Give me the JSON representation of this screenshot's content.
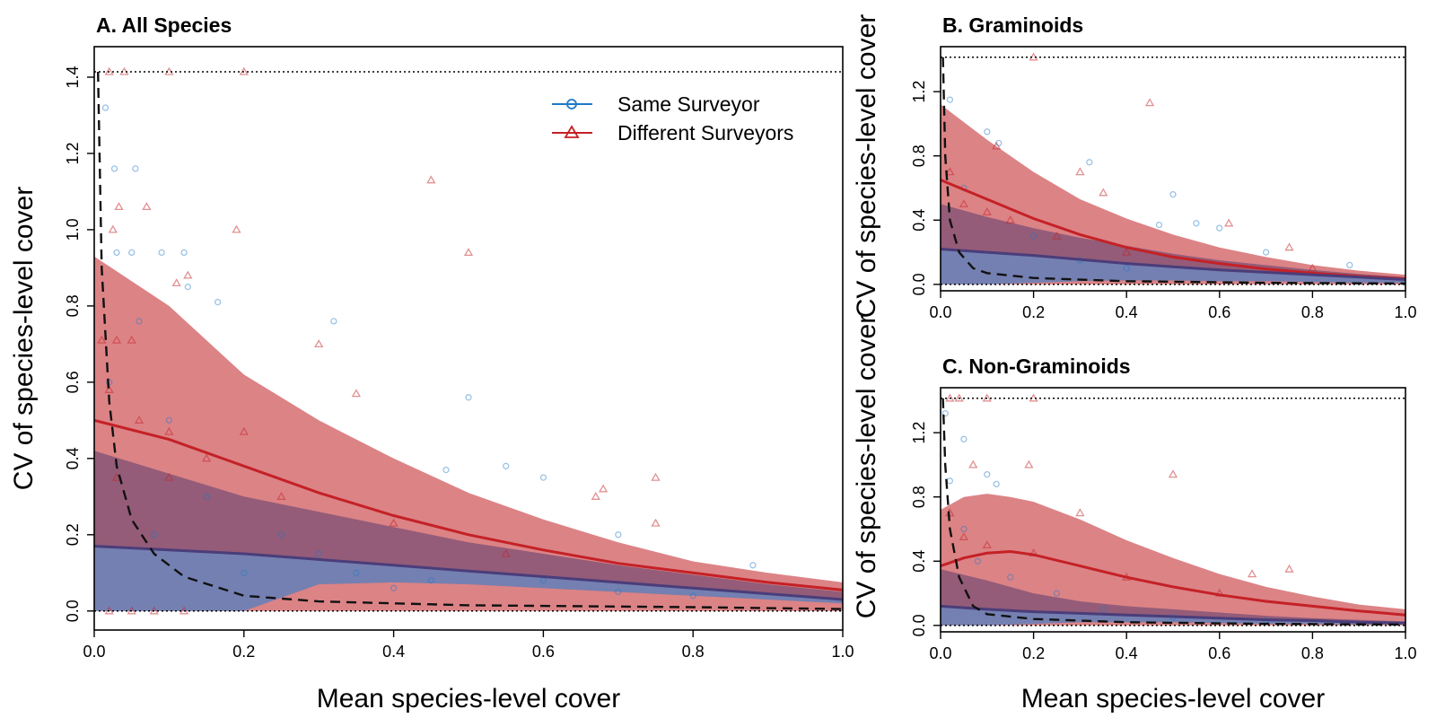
{
  "chart_data": [
    {
      "type": "scatter",
      "panel": "A",
      "title": "A. All Species",
      "xlabel": "Mean species-level cover",
      "ylabel": "CV of species-level cover",
      "xlim": [
        0,
        1
      ],
      "ylim": [
        -0.05,
        1.48
      ],
      "xticks": [
        "0.0",
        "0.2",
        "0.4",
        "0.6",
        "0.8",
        "1.0"
      ],
      "yticks": [
        "0.0",
        "0.2",
        "0.4",
        "0.6",
        "0.8",
        "1.0",
        "1.2",
        "1.4"
      ],
      "ref_max_cv": 1.414,
      "legend": {
        "position": "top-right",
        "entries": [
          {
            "label": "Same Surveyor",
            "color": "#1f78c8",
            "marker": "circle"
          },
          {
            "label": "Different Surveyors",
            "color": "#c42126",
            "marker": "triangle"
          }
        ]
      },
      "colors": {
        "same": "#1f78c8",
        "diff": "#c42126",
        "same_band": "#5a9fe0",
        "diff_band": "#d05a5e",
        "overlap": "#5a3d6e"
      },
      "series": [
        {
          "name": "Same Surveyor",
          "x": [
            0,
            0.1,
            0.2,
            0.3,
            0.4,
            0.5,
            0.6,
            0.7,
            0.8,
            0.9,
            1.0
          ],
          "mean": [
            0.17,
            0.16,
            0.15,
            0.135,
            0.12,
            0.105,
            0.09,
            0.075,
            0.06,
            0.045,
            0.03
          ],
          "lower": [
            0,
            0,
            0,
            0.07,
            0.075,
            0.07,
            0.06,
            0.05,
            0.04,
            0.03,
            0.02
          ],
          "upper": [
            0.42,
            0.36,
            0.3,
            0.26,
            0.22,
            0.18,
            0.15,
            0.12,
            0.095,
            0.07,
            0.05
          ]
        },
        {
          "name": "Different Surveyors",
          "x": [
            0,
            0.1,
            0.2,
            0.3,
            0.4,
            0.5,
            0.6,
            0.7,
            0.8,
            0.9,
            1.0
          ],
          "mean": [
            0.5,
            0.45,
            0.38,
            0.31,
            0.25,
            0.2,
            0.16,
            0.125,
            0.1,
            0.075,
            0.055
          ],
          "lower": [
            0,
            0,
            0,
            0,
            0,
            0,
            0,
            0,
            0,
            0,
            0
          ],
          "upper": [
            0.93,
            0.8,
            0.62,
            0.5,
            0.4,
            0.31,
            0.24,
            0.18,
            0.13,
            0.1,
            0.075
          ]
        },
        {
          "name": "",
          "x": [
            0.005,
            0.01,
            0.02,
            0.03,
            0.05,
            0.08,
            0.12,
            0.2,
            0.3,
            0.5,
            0.8,
            1.0
          ],
          "y": [
            1.414,
            0.9,
            0.55,
            0.38,
            0.24,
            0.15,
            0.09,
            0.04,
            0.025,
            0.015,
            0.01,
            0.005
          ],
          "style": "dashed"
        }
      ],
      "points_same": [
        [
          0.015,
          1.32
        ],
        [
          0.027,
          1.16
        ],
        [
          0.055,
          1.16
        ],
        [
          0.03,
          0.94
        ],
        [
          0.05,
          0.94
        ],
        [
          0.09,
          0.94
        ],
        [
          0.12,
          0.94
        ],
        [
          0.125,
          0.85
        ],
        [
          0.165,
          0.81
        ],
        [
          0.32,
          0.76
        ],
        [
          0.5,
          0.56
        ],
        [
          0.55,
          0.38
        ],
        [
          0.6,
          0.35
        ],
        [
          0.7,
          0.2
        ],
        [
          0.47,
          0.37
        ],
        [
          0.88,
          0.12
        ],
        [
          0.02,
          0.6
        ],
        [
          0.06,
          0.76
        ],
        [
          0.1,
          0.5
        ],
        [
          0.15,
          0.3
        ],
        [
          0.25,
          0.2
        ],
        [
          0.35,
          0.1
        ],
        [
          0.45,
          0.08
        ],
        [
          0.7,
          0.05
        ],
        [
          0.8,
          0.04
        ],
        [
          0.08,
          0.2
        ],
        [
          0.2,
          0.1
        ],
        [
          0.3,
          0.15
        ],
        [
          0.4,
          0.06
        ],
        [
          0.6,
          0.08
        ]
      ],
      "points_diff": [
        [
          0.02,
          1.414
        ],
        [
          0.04,
          1.414
        ],
        [
          0.1,
          1.414
        ],
        [
          0.2,
          1.414
        ],
        [
          0.033,
          1.06
        ],
        [
          0.025,
          1.0
        ],
        [
          0.07,
          1.06
        ],
        [
          0.19,
          1.0
        ],
        [
          0.45,
          1.13
        ],
        [
          0.5,
          0.94
        ],
        [
          0.11,
          0.86
        ],
        [
          0.125,
          0.88
        ],
        [
          0.3,
          0.7
        ],
        [
          0.35,
          0.57
        ],
        [
          0.67,
          0.3
        ],
        [
          0.75,
          0.23
        ],
        [
          0.75,
          0.35
        ],
        [
          0.68,
          0.32
        ],
        [
          0.01,
          0.71
        ],
        [
          0.03,
          0.71
        ],
        [
          0.05,
          0.71
        ],
        [
          0.02,
          0.58
        ],
        [
          0.06,
          0.5
        ],
        [
          0.1,
          0.47
        ],
        [
          0.15,
          0.4
        ],
        [
          0.2,
          0.47
        ],
        [
          0.25,
          0.3
        ],
        [
          0.4,
          0.23
        ],
        [
          0.55,
          0.15
        ],
        [
          0.1,
          0.35
        ],
        [
          0.03,
          0.35
        ],
        [
          0.02,
          0
        ],
        [
          0.05,
          0
        ],
        [
          0.08,
          0
        ],
        [
          0.12,
          0
        ]
      ]
    },
    {
      "type": "scatter",
      "panel": "B",
      "title": "B. Graminoids",
      "xlabel": "",
      "ylabel": "CV of species-level cover",
      "xlim": [
        0,
        1
      ],
      "ylim": [
        -0.04,
        1.48
      ],
      "xticks": [
        "0.0",
        "0.2",
        "0.4",
        "0.6",
        "0.8",
        "1.0"
      ],
      "yticks": [
        "0.0",
        "0.4",
        "0.8",
        "1.2"
      ],
      "ref_max_cv": 1.414,
      "series": [
        {
          "name": "Same Surveyor",
          "x": [
            0,
            0.1,
            0.2,
            0.3,
            0.4,
            0.5,
            0.6,
            0.7,
            0.8,
            0.9,
            1.0
          ],
          "mean": [
            0.22,
            0.2,
            0.18,
            0.155,
            0.13,
            0.11,
            0.09,
            0.075,
            0.06,
            0.045,
            0.03
          ],
          "lower": [
            0,
            0,
            0.01,
            0.02,
            0.025,
            0.025,
            0.02,
            0.02,
            0.015,
            0.01,
            0.01
          ],
          "upper": [
            0.5,
            0.42,
            0.35,
            0.29,
            0.24,
            0.19,
            0.15,
            0.12,
            0.09,
            0.065,
            0.045
          ]
        },
        {
          "name": "Different Surveyors",
          "x": [
            0,
            0.1,
            0.2,
            0.3,
            0.4,
            0.5,
            0.6,
            0.7,
            0.8,
            0.9,
            1.0
          ],
          "mean": [
            0.65,
            0.53,
            0.41,
            0.31,
            0.23,
            0.17,
            0.13,
            0.095,
            0.07,
            0.05,
            0.035
          ],
          "lower": [
            0,
            0,
            0,
            0,
            0,
            0,
            0,
            0,
            0,
            0,
            0
          ],
          "upper": [
            1.12,
            0.9,
            0.7,
            0.53,
            0.41,
            0.31,
            0.23,
            0.17,
            0.12,
            0.085,
            0.06
          ]
        },
        {
          "name": "",
          "x": [
            0.005,
            0.01,
            0.02,
            0.04,
            0.07,
            0.1,
            0.2,
            0.4,
            0.7,
            1.0
          ],
          "y": [
            1.414,
            0.8,
            0.4,
            0.2,
            0.1,
            0.07,
            0.04,
            0.02,
            0.01,
            0.005
          ],
          "style": "dashed"
        }
      ],
      "points_same": [
        [
          0.02,
          1.15
        ],
        [
          0.125,
          0.88
        ],
        [
          0.32,
          0.76
        ],
        [
          0.5,
          0.56
        ],
        [
          0.55,
          0.38
        ],
        [
          0.6,
          0.35
        ],
        [
          0.47,
          0.37
        ],
        [
          0.7,
          0.2
        ],
        [
          0.88,
          0.12
        ],
        [
          0.1,
          0.95
        ],
        [
          0.05,
          0.6
        ],
        [
          0.2,
          0.3
        ],
        [
          0.3,
          0.15
        ],
        [
          0.4,
          0.1
        ]
      ],
      "points_diff": [
        [
          0.2,
          1.414
        ],
        [
          0.45,
          1.13
        ],
        [
          0.12,
          0.86
        ],
        [
          0.3,
          0.7
        ],
        [
          0.35,
          0.57
        ],
        [
          0.62,
          0.38
        ],
        [
          0.75,
          0.23
        ],
        [
          0.02,
          0.7
        ],
        [
          0.05,
          0.5
        ],
        [
          0.1,
          0.45
        ],
        [
          0.15,
          0.4
        ],
        [
          0.25,
          0.3
        ],
        [
          0.4,
          0.2
        ],
        [
          0.8,
          0.1
        ]
      ]
    },
    {
      "type": "scatter",
      "panel": "C",
      "title": "C. Non-Graminoids",
      "xlabel": "Mean species-level cover",
      "ylabel": "CV of species-level cover",
      "xlim": [
        0,
        1
      ],
      "ylim": [
        -0.04,
        1.48
      ],
      "xticks": [
        "0.0",
        "0.2",
        "0.4",
        "0.6",
        "0.8",
        "1.0"
      ],
      "yticks": [
        "0.0",
        "0.4",
        "0.8",
        "1.2"
      ],
      "ref_max_cv": 1.414,
      "series": [
        {
          "name": "Same Surveyor",
          "x": [
            0,
            0.1,
            0.2,
            0.3,
            0.4,
            0.5,
            0.6,
            0.7,
            0.8,
            0.9,
            1.0
          ],
          "mean": [
            0.12,
            0.1,
            0.085,
            0.075,
            0.065,
            0.055,
            0.045,
            0.035,
            0.03,
            0.02,
            0.015
          ],
          "lower": [
            0,
            0,
            0.01,
            0.02,
            0.02,
            0.02,
            0.015,
            0.01,
            0.01,
            0.005,
            0.005
          ],
          "upper": [
            0.35,
            0.28,
            0.2,
            0.15,
            0.12,
            0.1,
            0.08,
            0.06,
            0.045,
            0.035,
            0.025
          ]
        },
        {
          "name": "Different Surveyors",
          "x": [
            0,
            0.05,
            0.1,
            0.15,
            0.2,
            0.3,
            0.4,
            0.5,
            0.6,
            0.7,
            0.8,
            0.9,
            1.0
          ],
          "mean": [
            0.37,
            0.42,
            0.45,
            0.46,
            0.44,
            0.37,
            0.3,
            0.24,
            0.19,
            0.15,
            0.12,
            0.09,
            0.065
          ],
          "lower": [
            0,
            0,
            0,
            0,
            0,
            0,
            0,
            0,
            0,
            0,
            0,
            0,
            0
          ],
          "upper": [
            0.72,
            0.8,
            0.82,
            0.8,
            0.77,
            0.66,
            0.53,
            0.42,
            0.32,
            0.24,
            0.18,
            0.13,
            0.1
          ]
        },
        {
          "name": "",
          "x": [
            0.005,
            0.01,
            0.02,
            0.04,
            0.07,
            0.1,
            0.2,
            0.4,
            0.7,
            1.0
          ],
          "y": [
            1.414,
            1.0,
            0.6,
            0.3,
            0.12,
            0.07,
            0.04,
            0.02,
            0.01,
            0.005
          ],
          "style": "dashed"
        }
      ],
      "points_same": [
        [
          0.01,
          1.32
        ],
        [
          0.05,
          1.16
        ],
        [
          0.1,
          0.94
        ],
        [
          0.12,
          0.88
        ],
        [
          0.02,
          0.9
        ],
        [
          0.05,
          0.6
        ],
        [
          0.15,
          0.3
        ],
        [
          0.25,
          0.2
        ],
        [
          0.35,
          0.1
        ],
        [
          0.5,
          0.05
        ],
        [
          0.7,
          0.03
        ],
        [
          0.08,
          0.4
        ]
      ],
      "points_diff": [
        [
          0.02,
          1.414
        ],
        [
          0.04,
          1.414
        ],
        [
          0.1,
          1.414
        ],
        [
          0.2,
          1.414
        ],
        [
          0.07,
          1.0
        ],
        [
          0.19,
          1.0
        ],
        [
          0.5,
          0.94
        ],
        [
          0.3,
          0.7
        ],
        [
          0.67,
          0.32
        ],
        [
          0.75,
          0.35
        ],
        [
          0.02,
          0.7
        ],
        [
          0.05,
          0.55
        ],
        [
          0.1,
          0.5
        ],
        [
          0.2,
          0.45
        ],
        [
          0.4,
          0.3
        ],
        [
          0.6,
          0.2
        ]
      ]
    }
  ]
}
